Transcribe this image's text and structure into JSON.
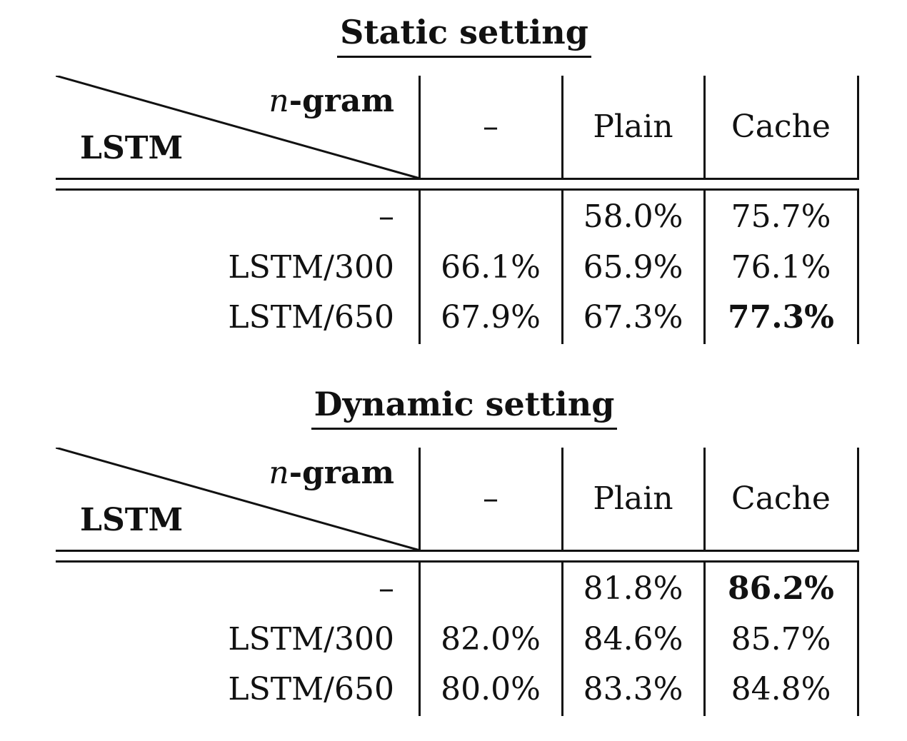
{
  "tables": [
    {
      "title": "Static setting",
      "header": {
        "diag_top": "n-gram",
        "diag_top_italic": "n",
        "diag_top_rest": "-gram",
        "diag_bottom": "LSTM",
        "columns": [
          "–",
          "Plain",
          "Cache"
        ]
      },
      "rows": [
        {
          "label": "–",
          "cells": [
            "",
            "58.0%",
            "75.7%"
          ]
        },
        {
          "label": "LSTM/300",
          "cells": [
            "66.1%",
            "65.9%",
            "76.1%"
          ]
        },
        {
          "label": "LSTM/650",
          "cells": [
            "67.9%",
            "67.3%",
            "77.3%"
          ]
        }
      ],
      "bold_cell": "LSTM/650 / Cache"
    },
    {
      "title": "Dynamic setting",
      "header": {
        "diag_top": "n-gram",
        "diag_top_italic": "n",
        "diag_top_rest": "-gram",
        "diag_bottom": "LSTM",
        "columns": [
          "–",
          "Plain",
          "Cache"
        ]
      },
      "rows": [
        {
          "label": "–",
          "cells": [
            "",
            "81.8%",
            "86.2%"
          ]
        },
        {
          "label": "LSTM/300",
          "cells": [
            "82.0%",
            "84.6%",
            "85.7%"
          ]
        },
        {
          "label": "LSTM/650",
          "cells": [
            "80.0%",
            "83.3%",
            "84.8%"
          ]
        }
      ],
      "bold_cell": "– / Cache"
    }
  ]
}
